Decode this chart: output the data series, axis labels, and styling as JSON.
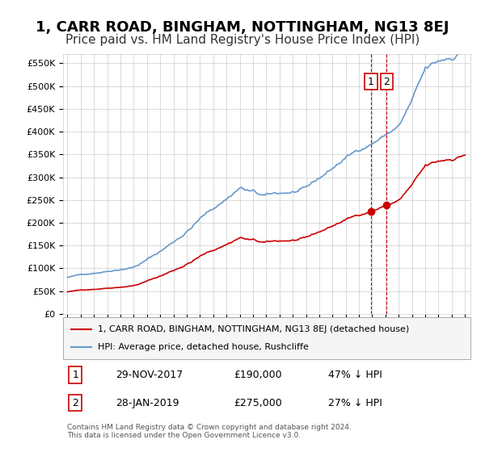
{
  "title": "1, CARR ROAD, BINGHAM, NOTTINGHAM, NG13 8EJ",
  "subtitle": "Price paid vs. HM Land Registry's House Price Index (HPI)",
  "title_fontsize": 13,
  "subtitle_fontsize": 11,
  "background_color": "#ffffff",
  "plot_bg_color": "#ffffff",
  "grid_color": "#cccccc",
  "hpi_color": "#6699cc",
  "price_color": "#cc0000",
  "dashed_color": "#cc0000",
  "ylabel_values": [
    "£0",
    "£50K",
    "£100K",
    "£150K",
    "£200K",
    "£250K",
    "£300K",
    "£350K",
    "£400K",
    "£450K",
    "£500K",
    "£550K"
  ],
  "ytick_values": [
    0,
    50000,
    100000,
    150000,
    200000,
    250000,
    300000,
    350000,
    400000,
    450000,
    500000,
    550000
  ],
  "ylim": [
    0,
    570000
  ],
  "sale1_date": "2017-11-29",
  "sale1_price": 190000,
  "sale1_label": "29-NOV-2017",
  "sale1_pct": "47% ↓ HPI",
  "sale2_date": "2019-01-28",
  "sale2_price": 275000,
  "sale2_label": "28-JAN-2019",
  "sale2_pct": "27% ↓ HPI",
  "legend_label1": "1, CARR ROAD, BINGHAM, NOTTINGHAM, NG13 8EJ (detached house)",
  "legend_label2": "HPI: Average price, detached house, Rushcliffe",
  "table_row1": [
    "1",
    "29-NOV-2017",
    "£190,000",
    "47% ↓ HPI"
  ],
  "table_row2": [
    "2",
    "28-JAN-2019",
    "£275,000",
    "27% ↓ HPI"
  ],
  "footnote": "Contains HM Land Registry data © Crown copyright and database right 2024.\nThis data is licensed under the Open Government Licence v3.0.",
  "xstart_year": 1995,
  "xend_year": 2025
}
